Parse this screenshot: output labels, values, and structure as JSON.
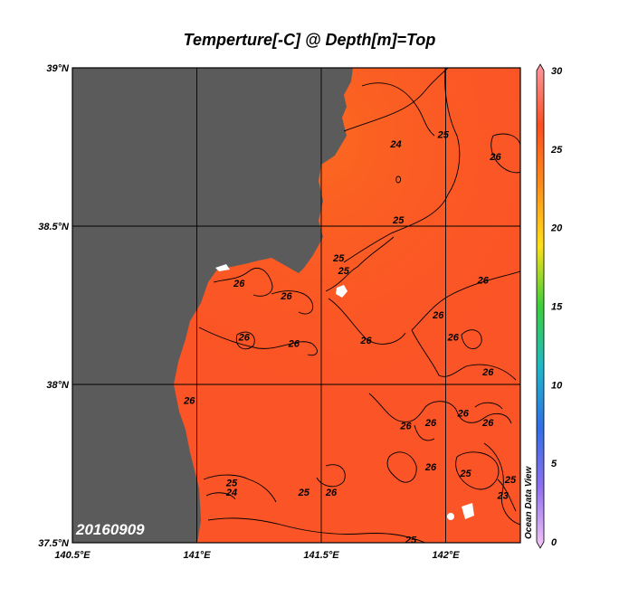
{
  "chart_data": {
    "type": "heatmap",
    "title": "Temperture[-C] @ Depth[m]=Top",
    "xlim": [
      140.5,
      142.3
    ],
    "ylim": [
      37.5,
      39.0
    ],
    "x_ticks": [
      {
        "value": 140.5,
        "label": "140.5°E"
      },
      {
        "value": 141.0,
        "label": "141°E"
      },
      {
        "value": 141.5,
        "label": "141.5°E"
      },
      {
        "value": 142.0,
        "label": "142°E"
      }
    ],
    "y_ticks": [
      {
        "value": 39.0,
        "label": "39°N"
      },
      {
        "value": 38.5,
        "label": "38.5°N"
      },
      {
        "value": 38.0,
        "label": "38°N"
      },
      {
        "value": 37.5,
        "label": "37.5°N"
      }
    ],
    "grid": true,
    "date_label": "20160909",
    "watermark": "Ocean Data View",
    "colorbar": {
      "min": 0,
      "max": 30,
      "ticks": [
        "0",
        "5",
        "10",
        "15",
        "20",
        "25",
        "30"
      ],
      "stops": [
        "#f6c6f6",
        "#8f6ff0",
        "#2f6fe6",
        "#1fb8c8",
        "#3ccf3a",
        "#ffe017",
        "#ff8c1a",
        "#fb4e21",
        "#fb9aa0"
      ]
    },
    "fill_color": "#fb5426",
    "land_color": "#5b5b5b",
    "contour_labels": [
      {
        "value": "24",
        "lon": 141.8,
        "lat": 38.76
      },
      {
        "value": "25",
        "lon": 141.99,
        "lat": 38.79
      },
      {
        "value": "26",
        "lon": 142.2,
        "lat": 38.72
      },
      {
        "value": "25",
        "lon": 141.81,
        "lat": 38.52
      },
      {
        "value": "25",
        "lon": 141.57,
        "lat": 38.4
      },
      {
        "value": "25",
        "lon": 141.59,
        "lat": 38.36
      },
      {
        "value": "26",
        "lon": 141.17,
        "lat": 38.32
      },
      {
        "value": "26",
        "lon": 141.36,
        "lat": 38.28
      },
      {
        "value": "26",
        "lon": 142.15,
        "lat": 38.33
      },
      {
        "value": "26",
        "lon": 141.97,
        "lat": 38.22
      },
      {
        "value": "26",
        "lon": 142.03,
        "lat": 38.15
      },
      {
        "value": "26",
        "lon": 141.68,
        "lat": 38.14
      },
      {
        "value": "26",
        "lon": 141.39,
        "lat": 38.13
      },
      {
        "value": "26",
        "lon": 141.19,
        "lat": 38.15
      },
      {
        "value": "26",
        "lon": 142.17,
        "lat": 38.04
      },
      {
        "value": "26",
        "lon": 140.97,
        "lat": 37.95
      },
      {
        "value": "26",
        "lon": 142.07,
        "lat": 37.91
      },
      {
        "value": "26",
        "lon": 142.17,
        "lat": 37.88
      },
      {
        "value": "26",
        "lon": 141.84,
        "lat": 37.87
      },
      {
        "value": "26",
        "lon": 141.94,
        "lat": 37.88
      },
      {
        "value": "26",
        "lon": 141.94,
        "lat": 37.74
      },
      {
        "value": "25",
        "lon": 142.08,
        "lat": 37.72
      },
      {
        "value": "25",
        "lon": 142.26,
        "lat": 37.7
      },
      {
        "value": "25",
        "lon": 141.14,
        "lat": 37.69
      },
      {
        "value": "24",
        "lon": 141.14,
        "lat": 37.66
      },
      {
        "value": "25",
        "lon": 141.43,
        "lat": 37.66
      },
      {
        "value": "26",
        "lon": 141.54,
        "lat": 37.66
      },
      {
        "value": "23",
        "lon": 142.23,
        "lat": 37.65
      },
      {
        "value": "25",
        "lon": 141.86,
        "lat": 37.51
      }
    ]
  }
}
